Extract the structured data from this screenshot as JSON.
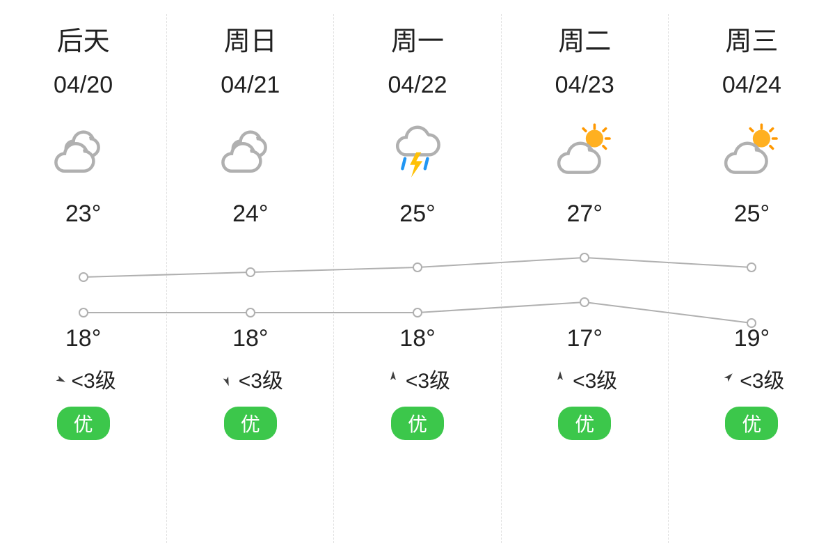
{
  "colors": {
    "text": "#202020",
    "divider": "#e0e0e0",
    "cloud_stroke": "#b0b0b0",
    "cloud_fill": "#ffffff",
    "sun_fill": "#ffb020",
    "sun_stroke": "#ff9800",
    "rain_blue": "#2196f3",
    "lightning": "#ffc107",
    "line_stroke": "#b0b0b0",
    "aqi_green": "#3cc74b",
    "wind_arrow": "#404040",
    "background": "#ffffff"
  },
  "chart": {
    "high_values": [
      23,
      24,
      25,
      27,
      25
    ],
    "low_values": [
      18,
      18,
      18,
      17,
      19
    ],
    "point_radius": 6,
    "line_width": 2,
    "high_y_range": [
      42,
      14
    ],
    "low_y_range": [
      78,
      108
    ]
  },
  "days": [
    {
      "day_label": "后天",
      "date": "04/20",
      "icon": "cloudy",
      "high": "23°",
      "low": "18°",
      "wind_dir_deg": 115,
      "wind_level": "<3级",
      "aqi_label": "优",
      "aqi_color": "#3cc74b"
    },
    {
      "day_label": "周日",
      "date": "04/21",
      "icon": "cloudy",
      "high": "24°",
      "low": "18°",
      "wind_dir_deg": 160,
      "wind_level": "<3级",
      "aqi_label": "优",
      "aqi_color": "#3cc74b"
    },
    {
      "day_label": "周一",
      "date": "04/22",
      "icon": "thunderstorm",
      "high": "25°",
      "low": "18°",
      "wind_dir_deg": 0,
      "wind_level": "<3级",
      "aqi_label": "优",
      "aqi_color": "#3cc74b"
    },
    {
      "day_label": "周二",
      "date": "04/23",
      "icon": "partly_cloudy",
      "high": "27°",
      "low": "17°",
      "wind_dir_deg": 0,
      "wind_level": "<3级",
      "aqi_label": "优",
      "aqi_color": "#3cc74b"
    },
    {
      "day_label": "周三",
      "date": "04/24",
      "icon": "partly_cloudy",
      "high": "25°",
      "low": "19°",
      "wind_dir_deg": 45,
      "wind_level": "<3级",
      "aqi_label": "优",
      "aqi_color": "#3cc74b"
    }
  ]
}
